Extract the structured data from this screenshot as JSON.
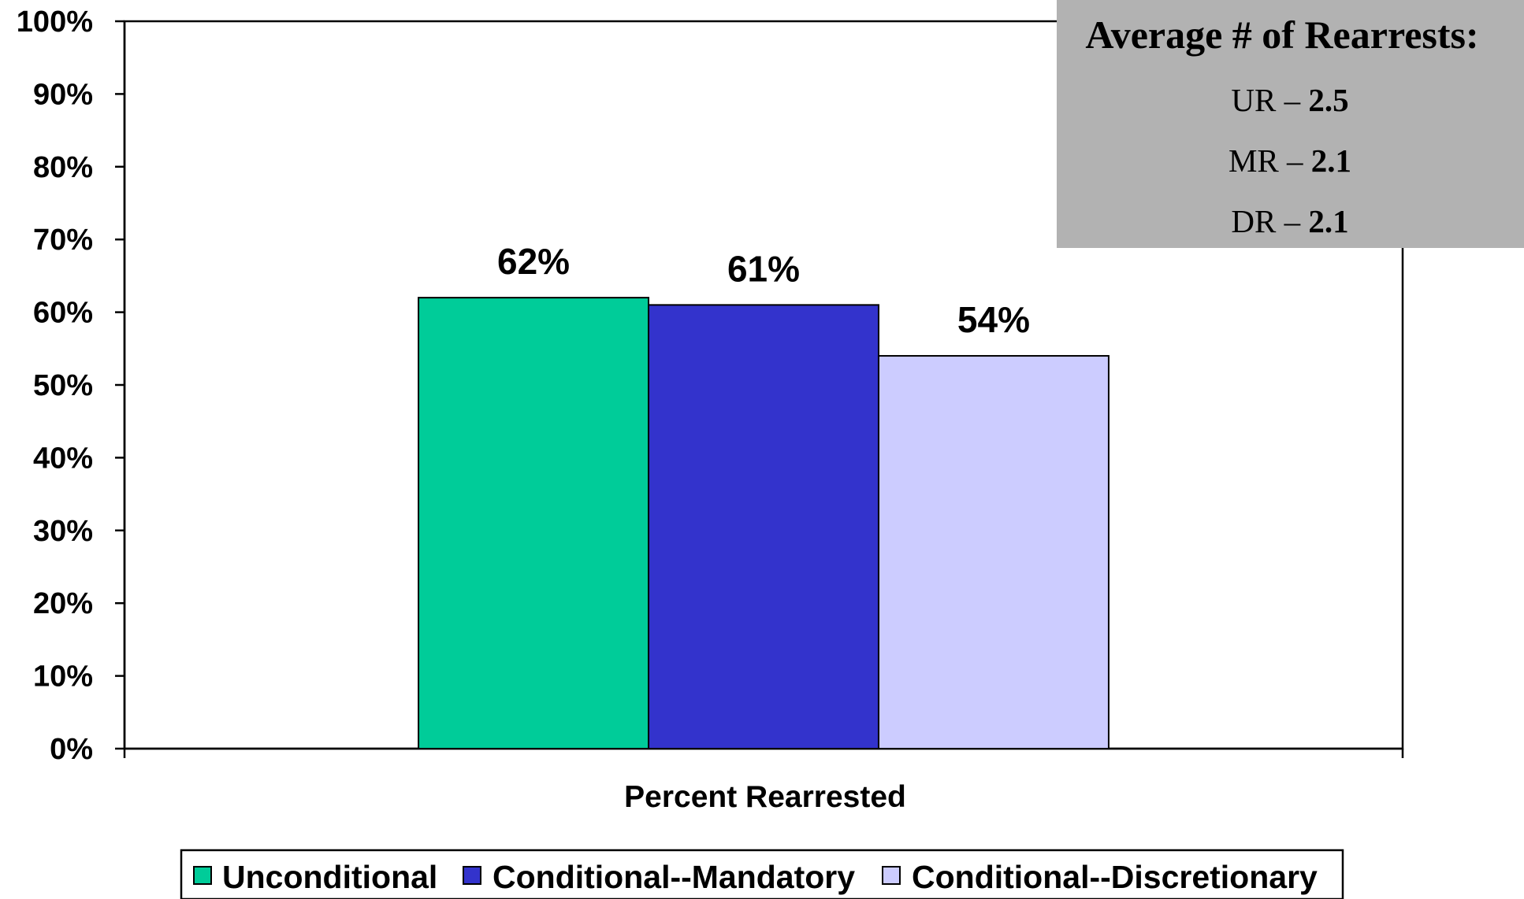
{
  "chart_data": {
    "type": "bar",
    "categories": [
      "Percent Rearrested"
    ],
    "xlabel": "Percent Rearrested",
    "ylabel": "",
    "ylim": [
      0,
      100
    ],
    "y_tick_values": [
      0,
      10,
      20,
      30,
      40,
      50,
      60,
      70,
      80,
      90,
      100
    ],
    "y_tick_labels": [
      "0%",
      "10%",
      "20%",
      "30%",
      "40%",
      "50%",
      "60%",
      "70%",
      "80%",
      "90%",
      "100%"
    ],
    "grid": false,
    "legend_position": "bottom",
    "series": [
      {
        "name": "Unconditional",
        "values": [
          62
        ],
        "label": "62%",
        "color": "#00CC99"
      },
      {
        "name": "Conditional--Mandatory",
        "values": [
          61
        ],
        "label": "61%",
        "color": "#3333CC"
      },
      {
        "name": "Conditional--Discretionary",
        "values": [
          54
        ],
        "label": "54%",
        "color": "#CCCCFF"
      }
    ],
    "annotation": {
      "title": "Average # of Rearrests:",
      "background": "#B2B2B2",
      "lines": [
        {
          "prefix": "UR – ",
          "value": "2.5"
        },
        {
          "prefix": "MR – ",
          "value": "2.1"
        },
        {
          "prefix": "DR – ",
          "value": "2.1"
        }
      ]
    }
  }
}
